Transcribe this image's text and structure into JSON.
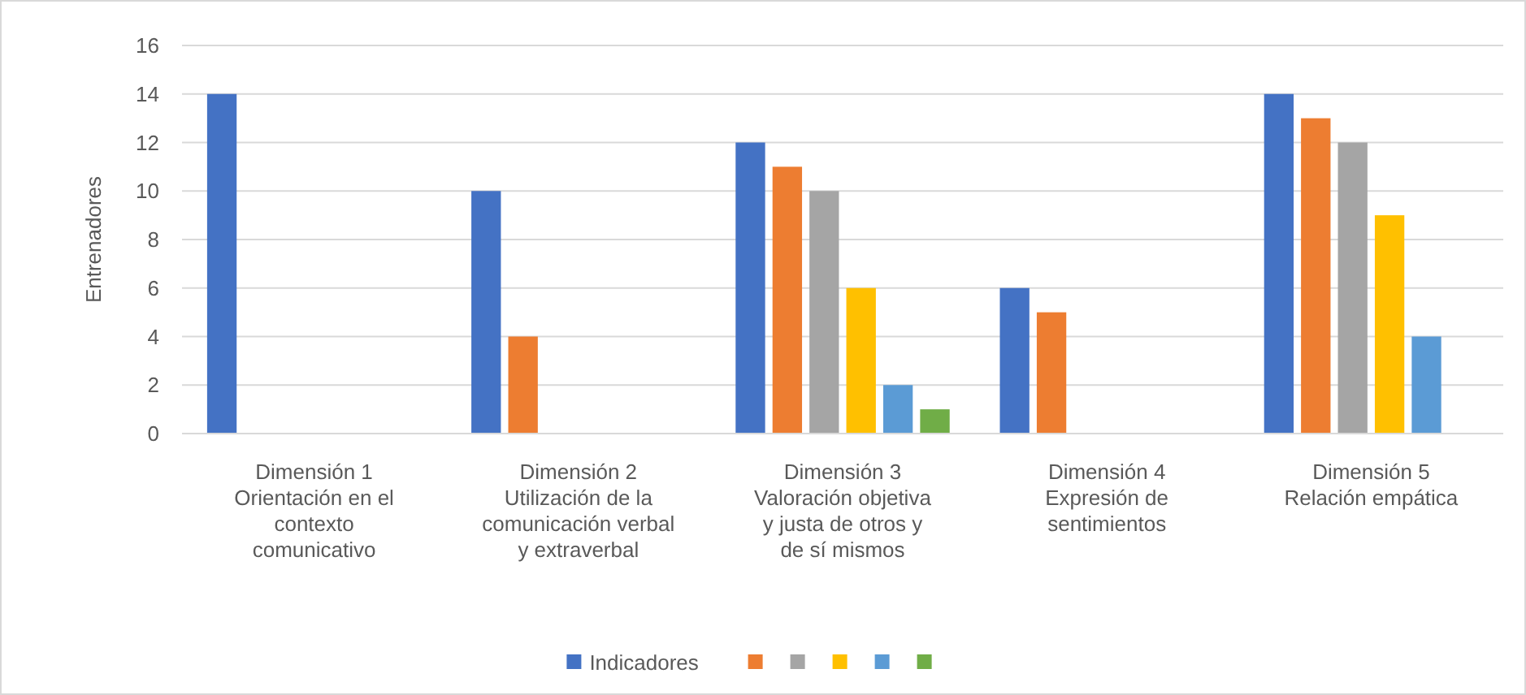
{
  "chart_data": {
    "type": "bar",
    "ylabel": "Entrenadores",
    "categories": [
      "Dimensión 1 Orientación en el contexto comunicativo",
      "Dimensión 2 Utilización de la comunicación verbal y extraverbal",
      "Dimensión 3 Valoración objetiva y justa de otros y de sí mismos",
      "Dimensión 4 Expresión de sentimientos",
      "Dimensión 5 Relación empática"
    ],
    "series": [
      {
        "name": "Indicadores",
        "color": "#4472c4",
        "values": [
          14,
          10,
          12,
          6,
          14
        ]
      },
      {
        "color": "#ed7d31",
        "values": [
          null,
          4,
          11,
          5,
          13
        ]
      },
      {
        "color": "#a5a5a5",
        "values": [
          null,
          null,
          10,
          null,
          12
        ]
      },
      {
        "color": "#ffc000",
        "values": [
          null,
          null,
          6,
          null,
          9
        ]
      },
      {
        "color": "#5b9bd5",
        "values": [
          null,
          null,
          2,
          null,
          4
        ]
      },
      {
        "color": "#70ad47",
        "values": [
          null,
          null,
          1,
          null,
          null
        ]
      }
    ],
    "ylim": [
      0,
      16
    ],
    "yticks": [
      0,
      2,
      4,
      6,
      8,
      10,
      12,
      14,
      16
    ],
    "grid": "y",
    "legend": "bottom"
  }
}
